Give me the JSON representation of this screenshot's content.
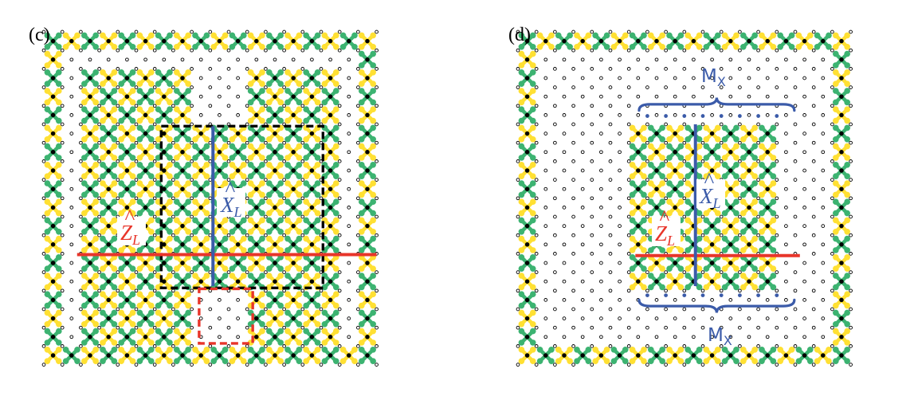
{
  "colors": {
    "yellow": "#ffe033",
    "green": "#3cb371",
    "data_qubit_fill": "#ffffff",
    "data_qubit_edge": "#000000",
    "ancilla": "#000000",
    "logical_x": "#3b5ba9",
    "logical_z": "#e8352a",
    "black_box": "#000000",
    "red_box": "#e8352a"
  },
  "panel_c": {
    "label": "(c)",
    "operator_x": {
      "hat": "^",
      "letter": "X",
      "sub": "L"
    },
    "operator_z": {
      "hat": "^",
      "letter": "Z",
      "sub": "L"
    }
  },
  "panel_d": {
    "label": "(d)",
    "operator_x": {
      "hat": "^",
      "letter": "X",
      "sub": "L"
    },
    "operator_z": {
      "hat": "^",
      "letter": "Z",
      "sub": "L"
    },
    "measure_top": {
      "letter": "M",
      "sub": "X"
    },
    "measure_bottom": {
      "letter": "M",
      "sub": "X"
    }
  }
}
